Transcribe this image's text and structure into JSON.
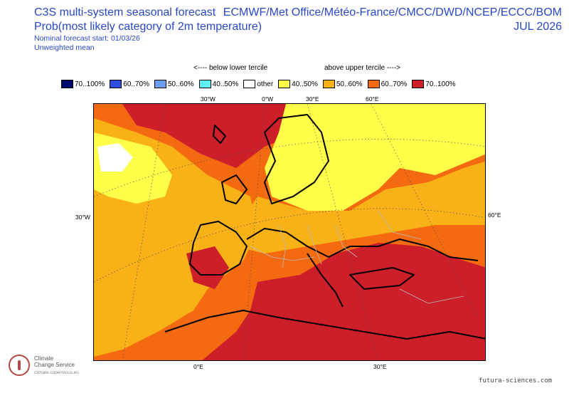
{
  "header": {
    "title_line1": "C3S multi-system seasonal forecast",
    "title_line2": "Prob(most likely category of 2m temperature)",
    "subtitle_line1": "Nominal forecast start: 01/03/26",
    "subtitle_line2": "Unweighted mean",
    "centres": "ECMWF/Met Office/Météo-France/CMCC/DWD/NCEP/ECCC/BOM",
    "valid_month": "JUL 2026"
  },
  "tercile_labels": {
    "below": "<---- below lower tercile",
    "above": "above upper tercile ---->"
  },
  "legend": [
    {
      "label": "70..100%",
      "color": "#000a6e"
    },
    {
      "label": "60..70%",
      "color": "#2d4fe0"
    },
    {
      "label": "50..60%",
      "color": "#6f9ef2"
    },
    {
      "label": "40..50%",
      "color": "#5ff0f4"
    },
    {
      "label": "other",
      "color": "#ffffff"
    },
    {
      "label": "40..50%",
      "color": "#ffff4a"
    },
    {
      "label": "50..60%",
      "color": "#f8b217"
    },
    {
      "label": "60..70%",
      "color": "#f46a10"
    },
    {
      "label": "70..100%",
      "color": "#cc1f2a"
    }
  ],
  "map_labels": {
    "top_30w": "30°W",
    "top_0w": "0°W",
    "top_30e": "30°E",
    "top_60e": "60°E",
    "left_30w": "30°W",
    "right_60e": "60°E",
    "bottom_0e": "0°E",
    "bottom_30e": "30°E"
  },
  "branding": {
    "logo_line1": "Climate",
    "logo_line2": "Change Service",
    "logo_url": "climate.copernicus.eu",
    "watermark": "futura-sciences.com"
  }
}
